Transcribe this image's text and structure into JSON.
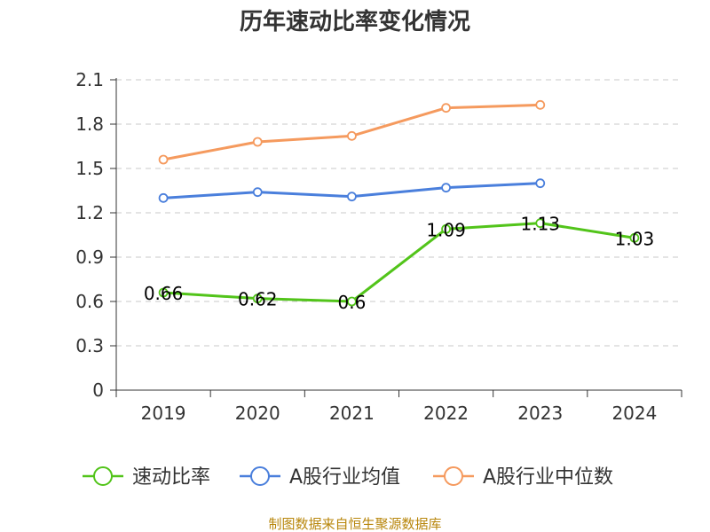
{
  "page": {
    "source_note": "制图数据来自恒生聚源数据库",
    "source_color": "#b8860b"
  },
  "chart_data": {
    "type": "line",
    "title": "历年速动比率变化情况",
    "xlabel": "",
    "ylabel": "",
    "categories": [
      "2019",
      "2020",
      "2021",
      "2022",
      "2023",
      "2024"
    ],
    "ylim": [
      0,
      2.1
    ],
    "yticks": [
      "0",
      "0.3",
      "0.6",
      "0.9",
      "1.2",
      "1.5",
      "1.8",
      "2.1"
    ],
    "grid": true,
    "legend_position": "bottom",
    "series": [
      {
        "name": "速动比率",
        "color": "#52c41a",
        "values": [
          0.66,
          0.62,
          0.6,
          1.09,
          1.13,
          1.03
        ],
        "labels": [
          "0.66",
          "0.62",
          "0.6",
          "1.09",
          "1.13",
          "1.03"
        ]
      },
      {
        "name": "A股行业均值",
        "color": "#4a7fdc",
        "values": [
          1.3,
          1.34,
          1.31,
          1.37,
          1.4,
          null
        ]
      },
      {
        "name": "A股行业中位数",
        "color": "#f59a5e",
        "values": [
          1.56,
          1.68,
          1.72,
          1.91,
          1.93,
          null
        ]
      }
    ]
  }
}
